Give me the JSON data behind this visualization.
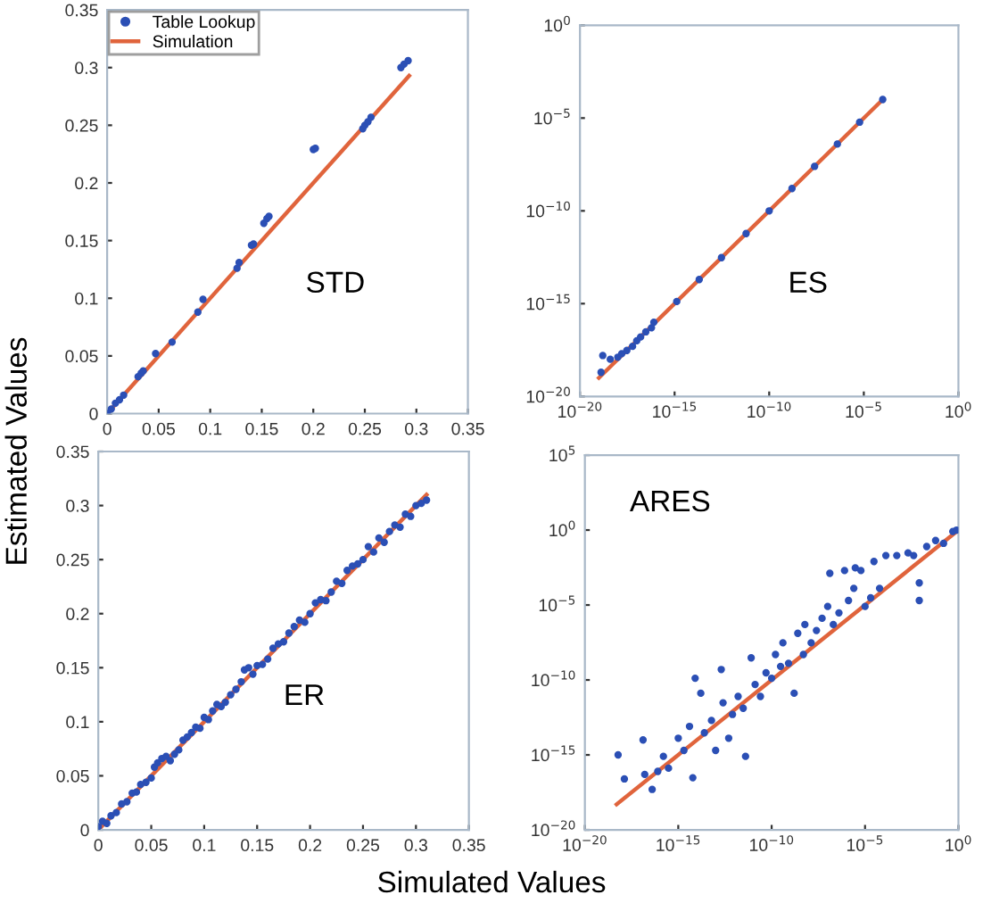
{
  "chart_data": [
    {
      "type": "scatter",
      "annotations": [
        "STD"
      ],
      "legend": "top left",
      "xlim": [
        0,
        0.35
      ],
      "ylim": [
        0,
        0.35
      ],
      "xticks": [
        0,
        0.05,
        0.1,
        0.15,
        0.2,
        0.25,
        0.3,
        0.35
      ],
      "yticks": [
        0,
        0.05,
        0.1,
        0.15,
        0.2,
        0.25,
        0.3,
        0.35
      ],
      "series": [
        {
          "name": "Table Lookup",
          "marker": "circle",
          "color": "#2b4fb5",
          "x": [
            0,
            0.004,
            0.008,
            0.012,
            0.016,
            0.03,
            0.033,
            0.035,
            0.047,
            0.063,
            0.088,
            0.093,
            0.126,
            0.128,
            0.14,
            0.142,
            0.152,
            0.155,
            0.157,
            0.2,
            0.202,
            0.248,
            0.25,
            0.253,
            0.256,
            0.285,
            0.288,
            0.292
          ],
          "values": [
            0,
            0.004,
            0.009,
            0.012,
            0.016,
            0.032,
            0.035,
            0.037,
            0.052,
            0.062,
            0.088,
            0.099,
            0.126,
            0.131,
            0.146,
            0.147,
            0.165,
            0.169,
            0.171,
            0.229,
            0.23,
            0.247,
            0.25,
            0.253,
            0.257,
            0.3,
            0.303,
            0.306
          ]
        },
        {
          "name": "Simulation",
          "type": "line",
          "color": "#e0643c",
          "x": [
            0,
            0.293
          ],
          "values": [
            0,
            0.293
          ]
        }
      ]
    },
    {
      "type": "scatter",
      "annotations": [
        "ES"
      ],
      "log": "xy",
      "xlim": [
        1e-20,
        1
      ],
      "ylim": [
        1e-20,
        1
      ],
      "xticks": [
        {
          "value": 1e-20,
          "label": "10$^{−20}$"
        },
        {
          "value": 1e-15,
          "label": "10$^{−15}$"
        },
        {
          "value": 1e-10,
          "label": "10$^{−10}$"
        },
        {
          "value": 1e-05,
          "label": "10$^{−5}$"
        },
        {
          "value": 1,
          "label": "10$^{0}$"
        }
      ],
      "yticks": [
        {
          "value": 1e-20,
          "label": "10$^{−20}$"
        },
        {
          "value": 1e-15,
          "label": "10$^{−15}$"
        },
        {
          "value": 1e-10,
          "label": "10$^{−10}$"
        },
        {
          "value": 1e-05,
          "label": "10$^{−5}$"
        },
        {
          "value": 1,
          "label": "10$^{0}$"
        }
      ],
      "series": [
        {
          "marker": "circle",
          "color": "#2b4fb5",
          "x": [
            1.3e-19,
            1.6e-19,
            4e-19,
            1e-18,
            1.6e-18,
            3e-18,
            6e-18,
            1e-17,
            1.6e-17,
            3e-17,
            6e-17,
            8e-17,
            1.3e-15,
            2e-14,
            3e-13,
            6e-12,
            1e-10,
            1.6e-09,
            2.5e-08,
            4e-07,
            6e-06,
            0.0001
          ],
          "values": [
            2e-19,
            1.6e-18,
            1e-18,
            1.3e-18,
            2e-18,
            3e-18,
            5e-18,
            1e-17,
            1.6e-17,
            3e-17,
            5e-17,
            1e-16,
            1.3e-15,
            2e-14,
            3e-13,
            6e-12,
            1e-10,
            1.6e-09,
            2.5e-08,
            4e-07,
            6e-06,
            0.0001
          ]
        },
        {
          "type": "line",
          "color": "#e0643c",
          "x": [
            1e-19,
            0.0001
          ],
          "values": [
            1e-19,
            0.0001
          ]
        }
      ]
    },
    {
      "type": "scatter",
      "annotations": [
        "ER"
      ],
      "xlabel": "Simulated Values",
      "ylabel": "Estimated Values",
      "xlim": [
        0,
        0.35
      ],
      "ylim": [
        0,
        0.35
      ],
      "xticks": [
        0,
        0.05,
        0.1,
        0.15,
        0.2,
        0.25,
        0.3,
        0.35
      ],
      "yticks": [
        0,
        0.05,
        0.1,
        0.15,
        0.2,
        0.25,
        0.3,
        0.35
      ],
      "series": [
        {
          "marker": "circle",
          "color": "#2b4fb5",
          "x": [
            0,
            0.004,
            0.008,
            0.012,
            0.017,
            0.022,
            0.027,
            0.032,
            0.036,
            0.04,
            0.045,
            0.05,
            0.053,
            0.056,
            0.06,
            0.064,
            0.068,
            0.072,
            0.076,
            0.08,
            0.084,
            0.088,
            0.092,
            0.096,
            0.1,
            0.104,
            0.108,
            0.112,
            0.116,
            0.12,
            0.125,
            0.13,
            0.135,
            0.138,
            0.142,
            0.146,
            0.15,
            0.155,
            0.16,
            0.165,
            0.17,
            0.175,
            0.18,
            0.185,
            0.19,
            0.195,
            0.2,
            0.205,
            0.21,
            0.215,
            0.22,
            0.225,
            0.23,
            0.235,
            0.24,
            0.245,
            0.25,
            0.255,
            0.26,
            0.265,
            0.27,
            0.275,
            0.28,
            0.285,
            0.29,
            0.295,
            0.3,
            0.305,
            0.31
          ],
          "values": [
            0.003,
            0.008,
            0.006,
            0.013,
            0.016,
            0.024,
            0.026,
            0.034,
            0.035,
            0.042,
            0.044,
            0.048,
            0.058,
            0.062,
            0.066,
            0.068,
            0.064,
            0.07,
            0.074,
            0.083,
            0.086,
            0.09,
            0.095,
            0.094,
            0.104,
            0.102,
            0.11,
            0.116,
            0.114,
            0.118,
            0.125,
            0.13,
            0.137,
            0.148,
            0.15,
            0.144,
            0.152,
            0.153,
            0.158,
            0.168,
            0.172,
            0.174,
            0.182,
            0.188,
            0.194,
            0.192,
            0.2,
            0.21,
            0.213,
            0.212,
            0.22,
            0.23,
            0.228,
            0.24,
            0.244,
            0.246,
            0.25,
            0.262,
            0.257,
            0.27,
            0.266,
            0.276,
            0.282,
            0.28,
            0.292,
            0.29,
            0.3,
            0.302,
            0.305
          ]
        },
        {
          "type": "line",
          "color": "#e0643c",
          "x": [
            0,
            0.31
          ],
          "values": [
            0,
            0.31
          ]
        }
      ]
    },
    {
      "type": "scatter",
      "annotations": [
        "ARES"
      ],
      "log": "xy",
      "xlim": [
        1e-20,
        1
      ],
      "ylim": [
        1e-20,
        100000.0
      ],
      "xticks": [
        {
          "value": 1e-20,
          "label": "10$^{−20}$"
        },
        {
          "value": 1e-15,
          "label": "10$^{−15}$"
        },
        {
          "value": 1e-10,
          "label": "10$^{−10}$"
        },
        {
          "value": 1e-05,
          "label": "10$^{−5}$"
        },
        {
          "value": 1,
          "label": "10$^{0}$"
        }
      ],
      "yticks": [
        {
          "value": 1e-20,
          "label": "10$^{−20}$"
        },
        {
          "value": 1e-15,
          "label": "10$^{−15}$"
        },
        {
          "value": 1e-10,
          "label": "10$^{−10}$"
        },
        {
          "value": 1e-05,
          "label": "10$^{−5}$"
        },
        {
          "value": 1,
          "label": "10$^{0}$"
        },
        {
          "value": 100000.0,
          "label": "10$^{5}$"
        }
      ],
      "series": [
        {
          "marker": "circle",
          "color": "#2b4fb5",
          "x": [
            6e-19,
            1.3e-18,
            1.3e-17,
            1.6e-17,
            4e-17,
            8e-17,
            1.6e-16,
            3e-16,
            1e-15,
            2e-15,
            4e-15,
            6e-15,
            8e-15,
            1.6e-14,
            2.5e-14,
            6e-14,
            1e-13,
            2e-13,
            2.5e-13,
            5e-13,
            8e-13,
            1.6e-12,
            3e-12,
            4e-12,
            8e-12,
            1.3e-11,
            2.5e-11,
            5e-11,
            1e-10,
            1.6e-10,
            3e-10,
            4e-10,
            8e-10,
            1.6e-09,
            2.5e-09,
            5e-09,
            6e-09,
            1.3e-08,
            2.5e-08,
            5e-08,
            1e-07,
            1.3e-07,
            2e-07,
            4e-07,
            8e-07,
            1.3e-06,
            2.5e-06,
            3e-06,
            6e-06,
            1e-05,
            2e-05,
            3e-05,
            6e-05,
            0.00013,
            0.0005,
            0.002,
            0.004,
            0.008,
            0.008,
            0.02,
            0.06,
            0.16,
            0.5,
            0.8
          ],
          "values": [
            1e-15,
            2.5e-17,
            1e-14,
            5e-17,
            5e-18,
            8e-17,
            8e-16,
            1.3e-16,
            1.3e-14,
            2e-15,
            8e-14,
            3e-17,
            1.3e-10,
            1.3e-11,
            3e-14,
            2e-13,
            2e-15,
            5e-10,
            3e-12,
            1.3e-14,
            5e-13,
            8e-12,
            1.3e-12,
            8e-16,
            3e-09,
            5e-11,
            8e-12,
            3e-10,
            1.3e-10,
            5e-09,
            8e-10,
            3e-08,
            1.3e-09,
            1.3e-11,
            1.3e-07,
            5e-09,
            5e-07,
            3e-08,
            2e-07,
            1.3e-06,
            8e-06,
            0.0013,
            5e-07,
            3e-06,
            0.002,
            2e-05,
            0.00013,
            0.003,
            0.002,
            8e-06,
            3e-05,
            0.008,
            0.00013,
            0.02,
            0.02,
            0.03,
            0.02,
            0.0003,
            2e-05,
            0.08,
            0.2,
            0.13,
            0.8,
            1
          ]
        },
        {
          "type": "line",
          "color": "#e0643c",
          "x": [
            5e-19,
            1
          ],
          "values": [
            5e-19,
            1
          ]
        }
      ]
    }
  ]
}
